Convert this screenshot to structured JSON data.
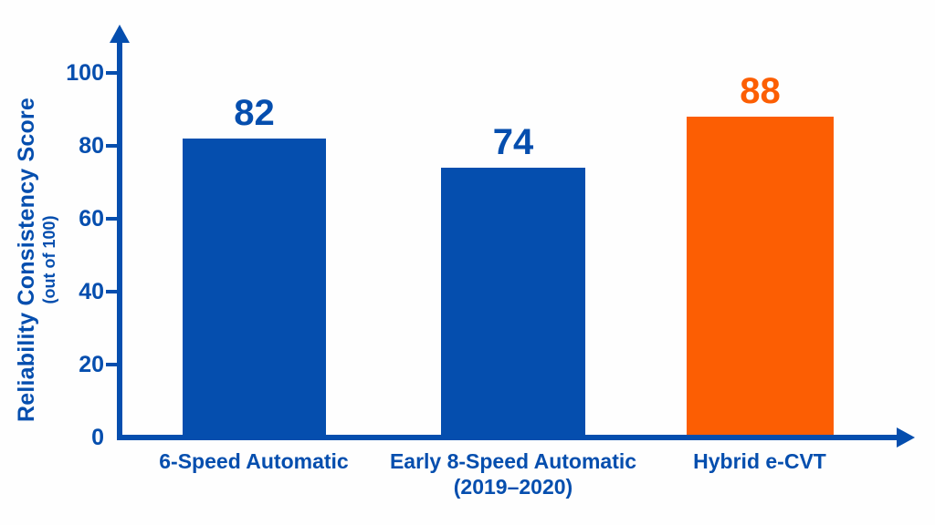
{
  "chart_data": {
    "type": "bar",
    "categories": [
      "6-Speed Automatic",
      "Early 8-Speed Automatic (2019–2020)",
      "Hybrid e-CVT"
    ],
    "category_lines": [
      [
        "6-Speed Automatic"
      ],
      [
        "Early 8-Speed Automatic",
        "(2019–2020)"
      ],
      [
        "Hybrid e-CVT"
      ]
    ],
    "values": [
      82,
      74,
      88
    ],
    "bar_colors": [
      "#054EAE",
      "#054EAE",
      "#FC5E03"
    ],
    "value_label_colors": [
      "#054EAE",
      "#054EAE",
      "#FC5E03"
    ],
    "title": "",
    "xlabel": "",
    "ylabel": "Reliability Consistency Score",
    "ylabel_sub": "(out of 100)",
    "yticks": [
      0,
      20,
      40,
      60,
      80,
      100
    ],
    "ylim": [
      0,
      100
    ],
    "grid": false,
    "legend": "none",
    "axis_color": "#054EAE",
    "background": "#FFFFFF"
  }
}
